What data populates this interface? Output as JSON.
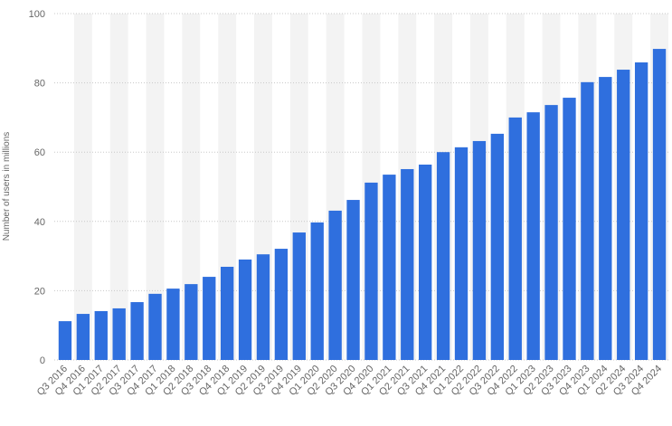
{
  "chart_data": {
    "type": "bar",
    "y_label": "Number of users in millions",
    "categories": [
      "Q3 2016",
      "Q4 2016",
      "Q1 2017",
      "Q2 2017",
      "Q3 2017",
      "Q4 2017",
      "Q1 2018",
      "Q2 2018",
      "Q3 2018",
      "Q4 2018",
      "Q1 2019",
      "Q2 2019",
      "Q3 2019",
      "Q4 2019",
      "Q1 2020",
      "Q2 2020",
      "Q3 2020",
      "Q4 2020",
      "Q1 2021",
      "Q2 2021",
      "Q3 2021",
      "Q4 2021",
      "Q1 2022",
      "Q2 2022",
      "Q3 2022",
      "Q4 2022",
      "Q1 2023",
      "Q2 2023",
      "Q3 2023",
      "Q4 2023",
      "Q1 2024",
      "Q2 2024",
      "Q3 2024",
      "Q4 2024"
    ],
    "values": [
      11.2,
      13.3,
      14.1,
      14.9,
      16.7,
      19.1,
      20.6,
      21.9,
      24,
      26.9,
      29,
      30.5,
      32.1,
      36.8,
      39.7,
      43.1,
      46.2,
      51.2,
      53.5,
      55.1,
      56.4,
      60,
      61.4,
      63.2,
      65.3,
      70,
      71.5,
      73.6,
      75.7,
      80.2,
      81.7,
      83.8,
      85.9,
      89.8
    ],
    "color": "#2f6fde",
    "ylim": [
      0,
      100
    ],
    "yticks": [
      0,
      20,
      40,
      60,
      80,
      100
    ],
    "grid": true
  }
}
